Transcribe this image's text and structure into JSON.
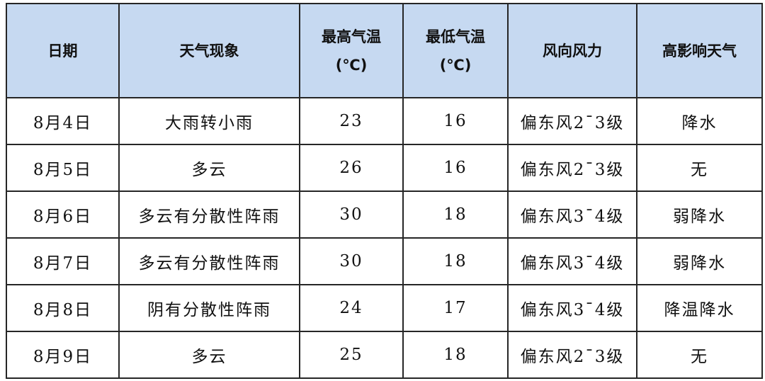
{
  "header_color": "#c6d9f1",
  "headers": [
    "日期",
    "天气现象",
    "最高气温",
    "最低气温",
    "风向风力",
    "高影响天气"
  ],
  "unit": "(℃)",
  "rows": [
    [
      "8月4日",
      "大雨转小雨",
      "23",
      "16",
      "偏东风2¯3级",
      "降水"
    ],
    [
      "8月5日",
      "多云",
      "26",
      "16",
      "偏东风2¯3级",
      "无"
    ],
    [
      "8月6日",
      "多云有分散性阵雨",
      "30",
      "18",
      "偏东风3¯4级",
      "弱降水"
    ],
    [
      "8月7日",
      "多云有分散性阵雨",
      "30",
      "18",
      "偏东风3¯4级",
      "弱降水"
    ],
    [
      "8月8日",
      "阴有分散性阵雨",
      "24",
      "17",
      "偏东风3¯4级",
      "降温降水"
    ],
    [
      "8月9日",
      "多云",
      "25",
      "18",
      "偏东风2¯3级",
      "无"
    ]
  ]
}
